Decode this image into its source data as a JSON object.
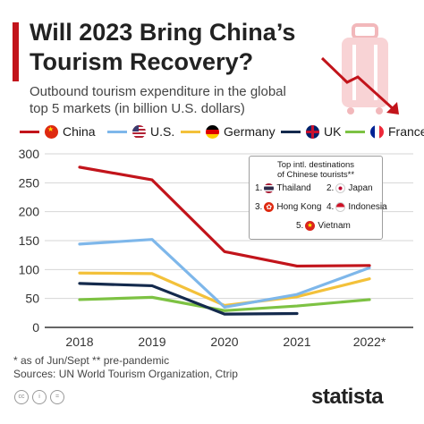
{
  "header": {
    "title_line1": "Will 2023 Bring China’s",
    "title_line2": "Tourism Recovery?",
    "subtitle_line1": "Outbound tourism expenditure in the global",
    "subtitle_line2": "top 5 markets (in billion U.S. dollars)",
    "accent_color": "#c2141b"
  },
  "legend": [
    {
      "label": "China",
      "color": "#c2141b",
      "flag": "china-flag-icon"
    },
    {
      "label": "U.S.",
      "color": "#7eb7ea",
      "flag": "us-flag-icon"
    },
    {
      "label": "Germany",
      "color": "#f3c13a",
      "flag": "germany-flag-icon"
    },
    {
      "label": "UK",
      "color": "#142a4d",
      "flag": "uk-flag-icon"
    },
    {
      "label": "France",
      "color": "#7dc243",
      "flag": "france-flag-icon"
    }
  ],
  "inset": {
    "title_line1": "Top intl. destinations",
    "title_line2": "of Chinese tourists**",
    "items": [
      {
        "rank": "1.",
        "name": "Thailand",
        "flag": "thailand-flag-icon"
      },
      {
        "rank": "2.",
        "name": "Japan",
        "flag": "japan-flag-icon"
      },
      {
        "rank": "3.",
        "name": "Hong Kong",
        "flag": "hong-kong-flag-icon"
      },
      {
        "rank": "4.",
        "name": "Indonesia",
        "flag": "indonesia-flag-icon"
      },
      {
        "rank": "5.",
        "name": "Vietnam",
        "flag": "vietnam-flag-icon"
      }
    ]
  },
  "chart_data": {
    "type": "line",
    "x": [
      "2018",
      "2019",
      "2020",
      "2021",
      "2022*"
    ],
    "ylim": [
      0,
      300
    ],
    "yticks": [
      0,
      50,
      100,
      150,
      200,
      250,
      300
    ],
    "grid": true,
    "legend_position": "top",
    "series": [
      {
        "name": "China",
        "color": "#c2141b",
        "values": [
          277,
          255,
          131,
          106,
          107
        ]
      },
      {
        "name": "U.S.",
        "color": "#7eb7ea",
        "values": [
          144,
          152,
          35,
          57,
          103
        ]
      },
      {
        "name": "Germany",
        "color": "#f3c13a",
        "values": [
          94,
          93,
          38,
          53,
          84
        ]
      },
      {
        "name": "UK",
        "color": "#142a4d",
        "values": [
          76,
          72,
          23,
          24,
          null
        ]
      },
      {
        "name": "France",
        "color": "#7dc243",
        "values": [
          48,
          52,
          29,
          37,
          48
        ]
      }
    ]
  },
  "footer": {
    "note": "* as of Jun/Sept   ** pre-pandemic",
    "sources": "Sources: UN World Tourism Organization, Ctrip",
    "brand": "statista"
  }
}
